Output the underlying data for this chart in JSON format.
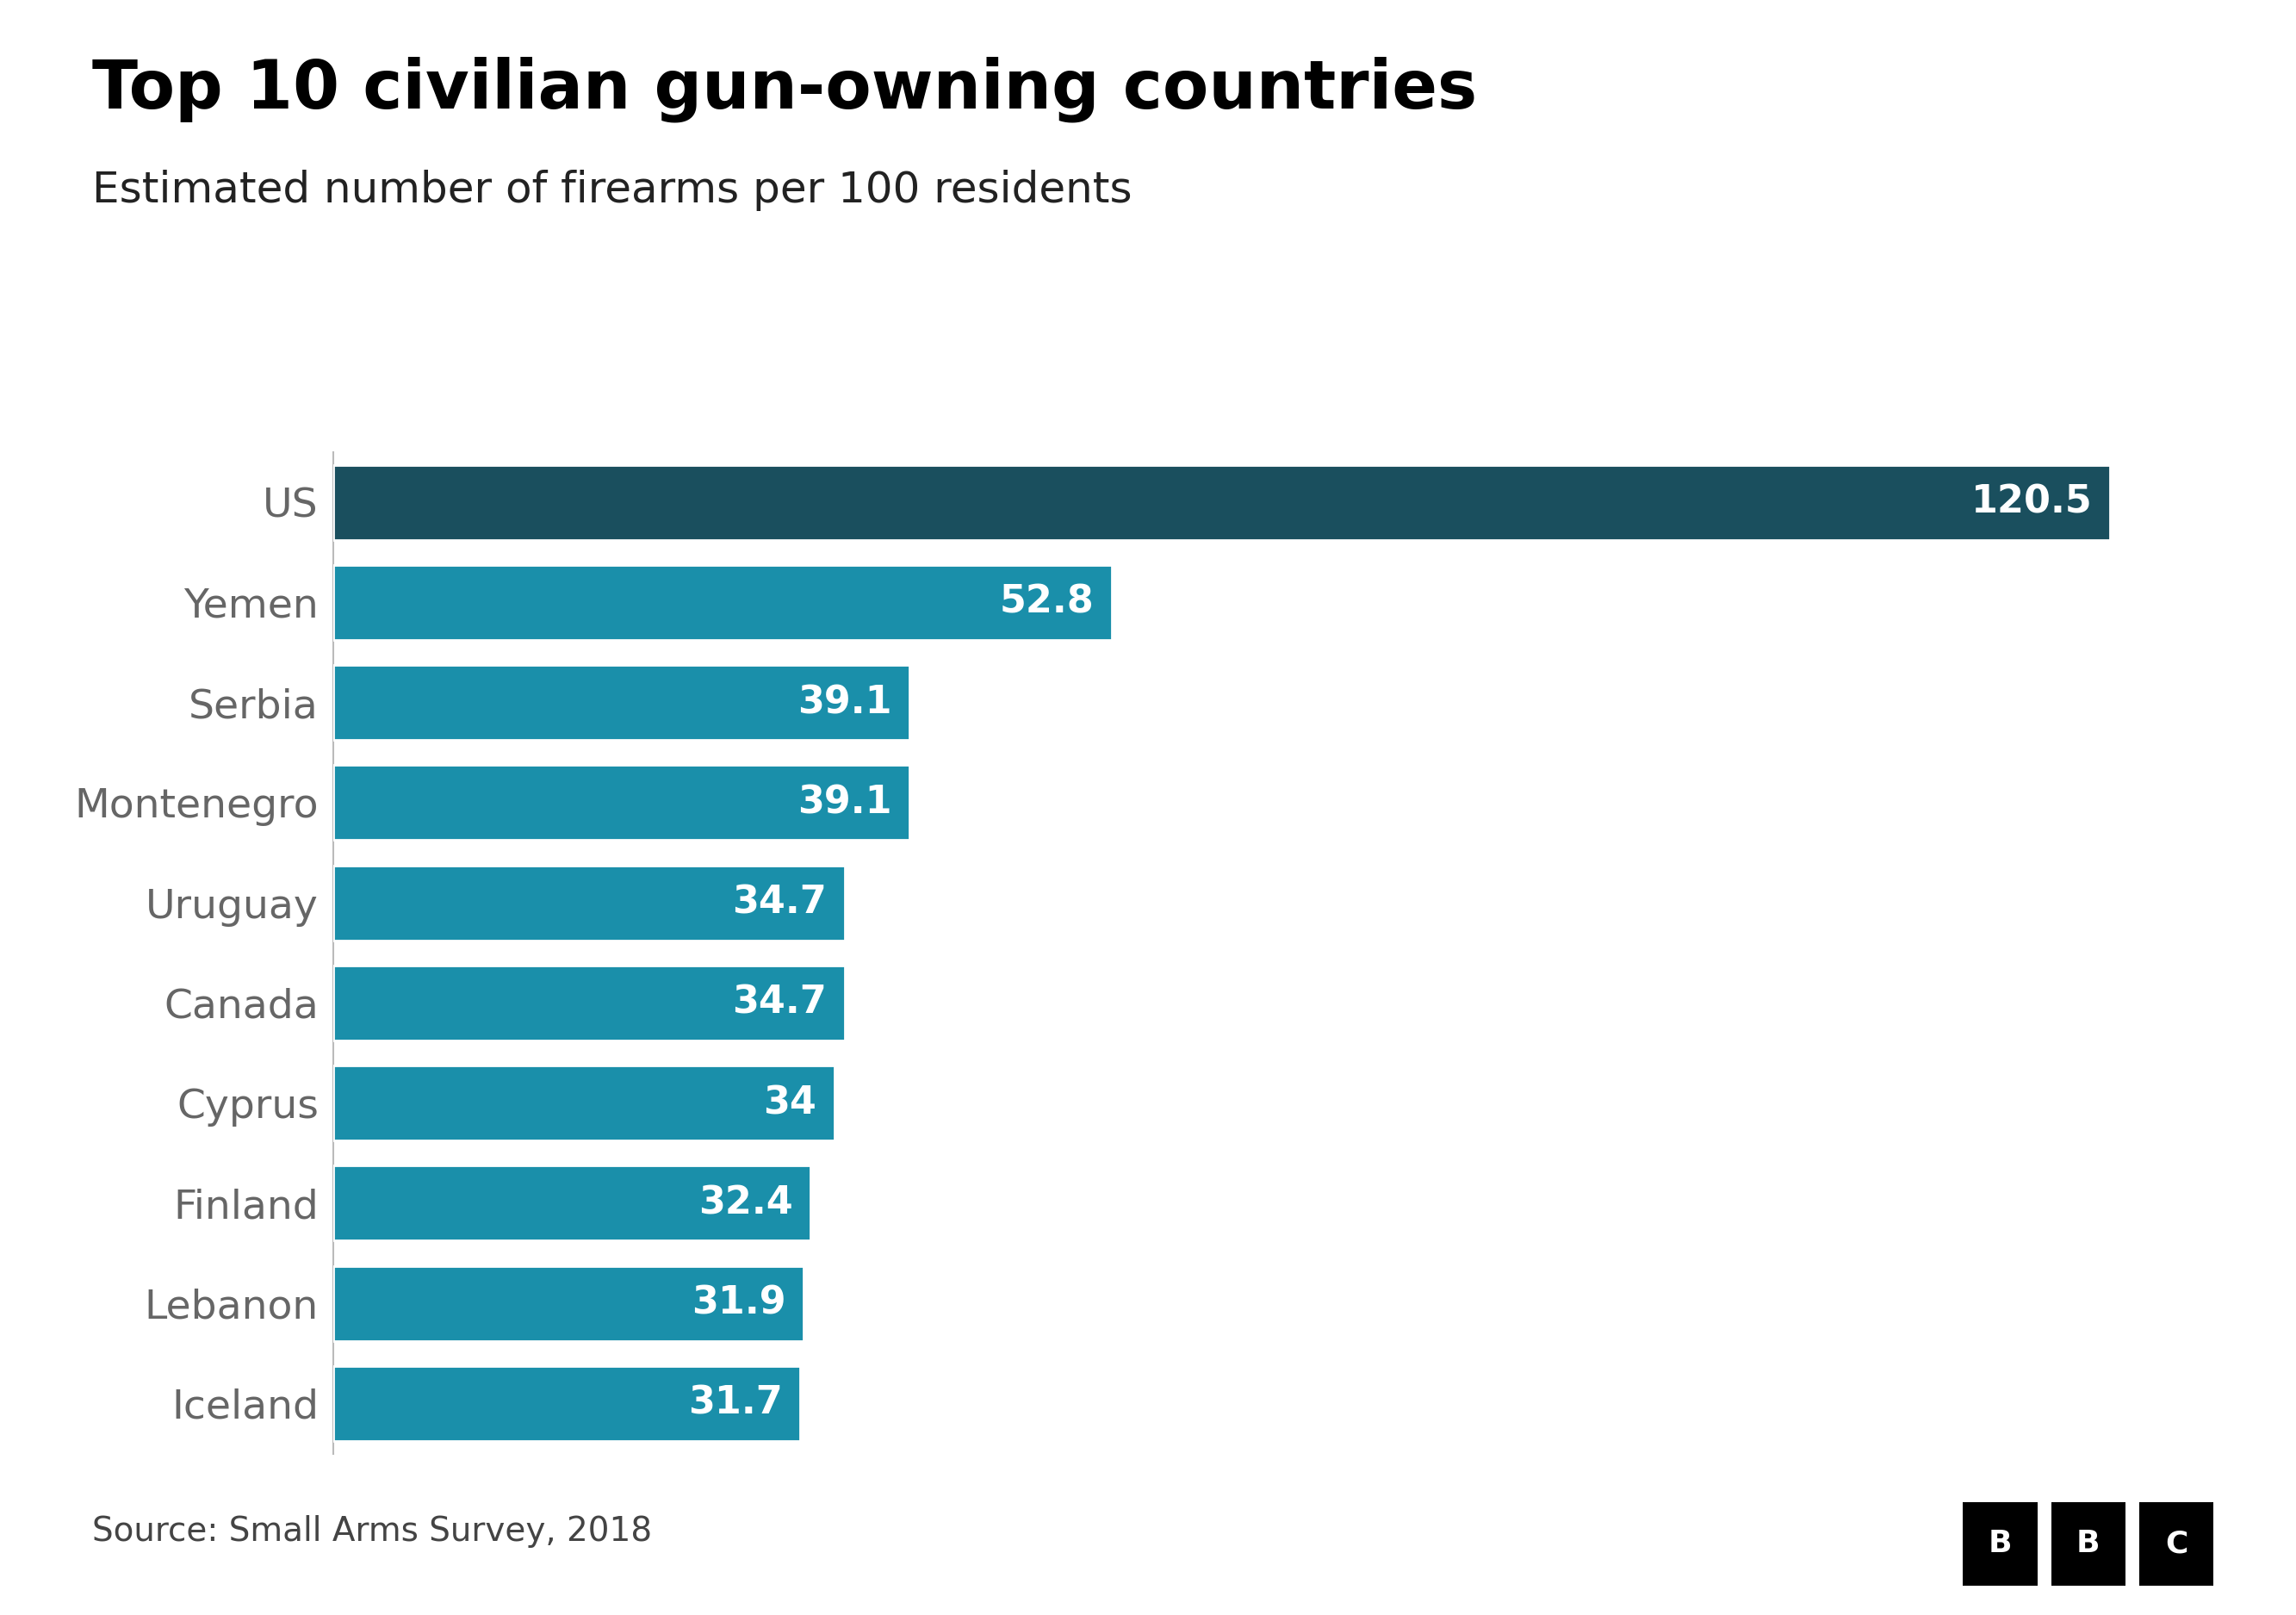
{
  "title": "Top 10 civilian gun-owning countries",
  "subtitle": "Estimated number of firearms per 100 residents",
  "source": "Source: Small Arms Survey, 2018",
  "categories": [
    "US",
    "Yemen",
    "Serbia",
    "Montenegro",
    "Uruguay",
    "Canada",
    "Cyprus",
    "Finland",
    "Lebanon",
    "Iceland"
  ],
  "values": [
    120.5,
    52.8,
    39.1,
    39.1,
    34.7,
    34.7,
    34.0,
    32.4,
    31.9,
    31.7
  ],
  "bar_colors": [
    "#1a4f5e",
    "#1a8faa",
    "#1a8faa",
    "#1a8faa",
    "#1a8faa",
    "#1a8faa",
    "#1a8faa",
    "#1a8faa",
    "#1a8faa",
    "#1a8faa"
  ],
  "label_colors": [
    "white",
    "white",
    "white",
    "white",
    "white",
    "white",
    "white",
    "white",
    "white",
    "white"
  ],
  "value_labels": [
    "120.5",
    "52.8",
    "39.1",
    "39.1",
    "34.7",
    "34.7",
    "34",
    "32.4",
    "31.9",
    "31.7"
  ],
  "background_color": "#ffffff",
  "title_fontsize": 56,
  "subtitle_fontsize": 36,
  "source_fontsize": 28,
  "bar_label_fontsize": 32,
  "y_label_fontsize": 34,
  "xlim": [
    0,
    130
  ],
  "bar_height": 0.75,
  "fig_width": 26.66,
  "fig_height": 18.75
}
